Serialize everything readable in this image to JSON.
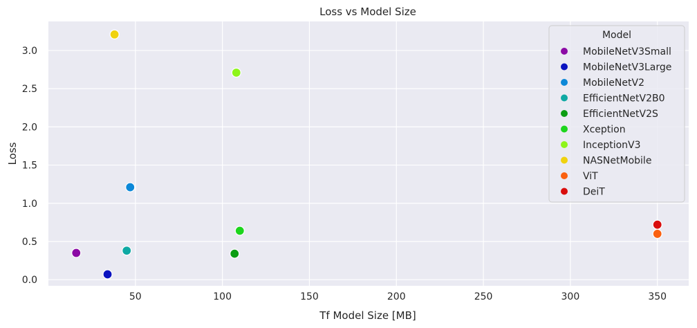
{
  "chart_data": {
    "type": "scatter",
    "title": "Loss vs Model Size",
    "xlabel": "Tf Model Size [MB]",
    "ylabel": "Loss",
    "xlim": [
      0,
      368
    ],
    "ylim": [
      -0.08,
      3.38
    ],
    "xticks": [
      50,
      100,
      150,
      200,
      250,
      300,
      350
    ],
    "yticks": [
      0.0,
      0.5,
      1.0,
      1.5,
      2.0,
      2.5,
      3.0
    ],
    "grid": true,
    "legend": {
      "title": "Model",
      "placement": "top-right"
    },
    "series": [
      {
        "name": "MobileNetV3Small",
        "color": "#8b0aa5",
        "x": 16,
        "y": 0.35
      },
      {
        "name": "MobileNetV3Large",
        "color": "#0a12c0",
        "x": 34,
        "y": 0.07
      },
      {
        "name": "MobileNetV2",
        "color": "#0c88d8",
        "x": 47,
        "y": 1.21
      },
      {
        "name": "EfficientNetV2B0",
        "color": "#0fa9a4",
        "x": 45,
        "y": 0.38
      },
      {
        "name": "EfficientNetV2S",
        "color": "#0b9d12",
        "x": 107,
        "y": 0.34
      },
      {
        "name": "Xception",
        "color": "#1dd51d",
        "x": 110,
        "y": 0.64
      },
      {
        "name": "InceptionV3",
        "color": "#8ef51a",
        "x": 108,
        "y": 2.71
      },
      {
        "name": "NASNetMobile",
        "color": "#f0d20e",
        "x": 38,
        "y": 3.21
      },
      {
        "name": "ViT",
        "color": "#fa6010",
        "x": 350,
        "y": 0.6
      },
      {
        "name": "DeiT",
        "color": "#d90d0d",
        "x": 350,
        "y": 0.72
      }
    ]
  }
}
